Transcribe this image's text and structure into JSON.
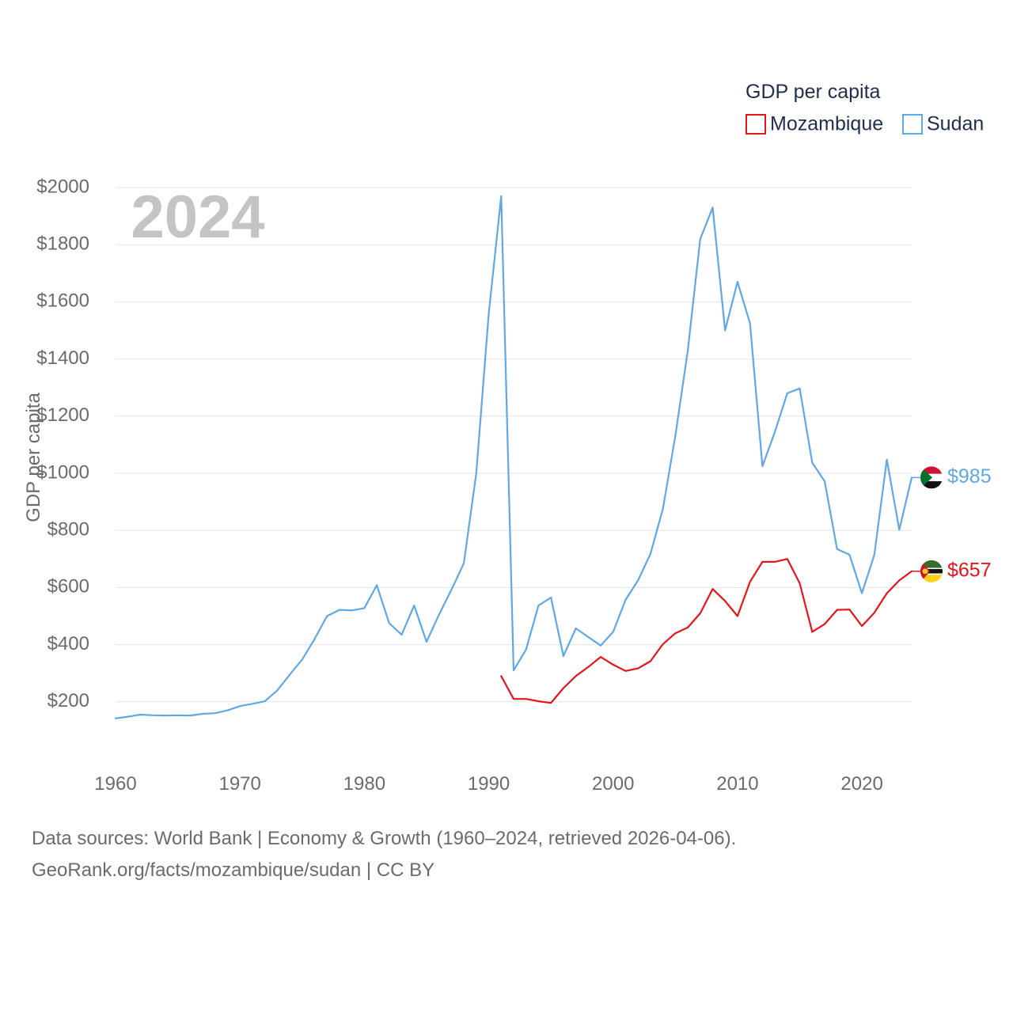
{
  "chart_data": {
    "type": "line",
    "title": "",
    "watermark_year": "2024",
    "legend_title": "GDP per capita",
    "xlabel": "",
    "ylabel": "GDP per capita",
    "xlim": [
      1960,
      2024
    ],
    "ylim": [
      0,
      2000
    ],
    "x_ticks": [
      1960,
      1970,
      1980,
      1990,
      2000,
      2010,
      2020
    ],
    "y_ticks": [
      200,
      400,
      600,
      800,
      1000,
      1200,
      1400,
      1600,
      1800,
      2000
    ],
    "y_tick_labels": [
      "$200",
      "$400",
      "$600",
      "$800",
      "$1000",
      "$1200",
      "$1400",
      "$1600",
      "$1800",
      "$2000"
    ],
    "x_tick_labels": [
      "1960",
      "1970",
      "1980",
      "1990",
      "2000",
      "2010",
      "2020"
    ],
    "grid": true,
    "series": [
      {
        "name": "Mozambique",
        "color": "#e8141b",
        "end_label": "$657",
        "flag": "mozambique-flag-icon",
        "x": [
          1991,
          1992,
          1993,
          1994,
          1995,
          1996,
          1997,
          1998,
          1999,
          2000,
          2001,
          2002,
          2003,
          2004,
          2005,
          2006,
          2007,
          2008,
          2009,
          2010,
          2011,
          2012,
          2013,
          2014,
          2015,
          2016,
          2017,
          2018,
          2019,
          2020,
          2021,
          2022,
          2023,
          2024
        ],
        "values": [
          290,
          210,
          210,
          202,
          196,
          248,
          290,
          322,
          357,
          330,
          308,
          317,
          342,
          402,
          440,
          460,
          510,
          595,
          553,
          500,
          620,
          690,
          690,
          700,
          615,
          445,
          472,
          522,
          523,
          465,
          512,
          580,
          625,
          657
        ]
      },
      {
        "name": "Sudan",
        "color": "#5fa8e8",
        "end_label": "$985",
        "flag": "sudan-flag-icon",
        "x": [
          1960,
          1961,
          1962,
          1963,
          1964,
          1965,
          1966,
          1967,
          1968,
          1969,
          1970,
          1971,
          1972,
          1973,
          1974,
          1975,
          1976,
          1977,
          1978,
          1979,
          1980,
          1981,
          1982,
          1983,
          1984,
          1985,
          1986,
          1987,
          1988,
          1989,
          1990,
          1991,
          1992,
          1993,
          1994,
          1995,
          1996,
          1997,
          1998,
          1999,
          2000,
          2001,
          2002,
          2003,
          2004,
          2005,
          2006,
          2007,
          2008,
          2009,
          2010,
          2011,
          2012,
          2013,
          2014,
          2015,
          2016,
          2017,
          2018,
          2019,
          2020,
          2021,
          2022,
          2023,
          2024
        ],
        "values": [
          142,
          148,
          155,
          153,
          152,
          153,
          152,
          158,
          160,
          170,
          185,
          193,
          202,
          240,
          295,
          348,
          420,
          500,
          522,
          520,
          528,
          608,
          475,
          435,
          537,
          410,
          505,
          592,
          685,
          1000,
          1560,
          1970,
          310,
          383,
          537,
          565,
          360,
          457,
          427,
          397,
          445,
          557,
          625,
          718,
          875,
          1130,
          1430,
          1820,
          1930,
          1500,
          1670,
          1525,
          1025,
          1145,
          1280,
          1297,
          1037,
          972,
          735,
          715,
          580,
          715,
          1048,
          802,
          985
        ]
      }
    ],
    "legend_position": "top-right"
  },
  "footer": {
    "sources": "Data sources: World Bank | Economy & Growth (1960–2024, retrieved 2026-04-06).",
    "credit": "GeoRank.org/facts/mozambique/sudan | CC BY"
  }
}
